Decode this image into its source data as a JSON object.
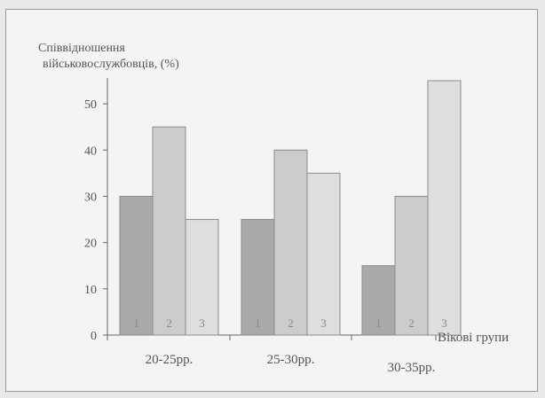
{
  "chart_data": {
    "type": "bar",
    "ylabel_lines": [
      "Співвідношення",
      "військовослужбовців, (%)"
    ],
    "xlabel": "Вікові групи",
    "categories": [
      "20-25рр.",
      "25-30рр.",
      "30-35рр."
    ],
    "series": [
      {
        "label": "1",
        "values": [
          30,
          25,
          15
        ],
        "color": "#a9a9a9"
      },
      {
        "label": "2",
        "values": [
          45,
          40,
          30
        ],
        "color": "#cccccc"
      },
      {
        "label": "3",
        "values": [
          25,
          35,
          55
        ],
        "color": "#dedede"
      }
    ],
    "yticks": [
      "0",
      "10",
      "20",
      "30",
      "40",
      "50"
    ],
    "ylim": [
      0,
      55
    ],
    "grid": false
  }
}
